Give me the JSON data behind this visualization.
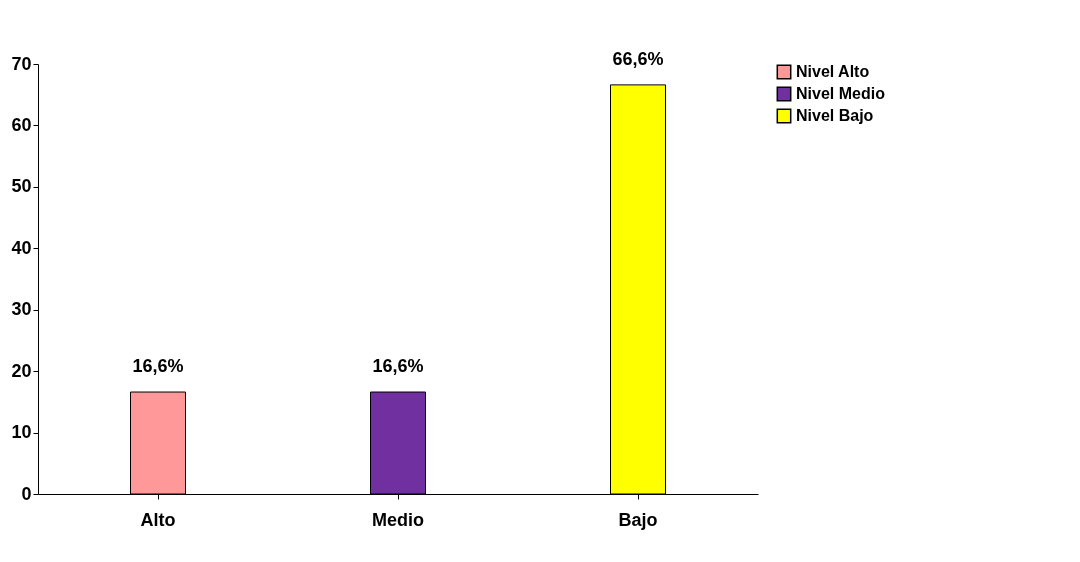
{
  "chart_data": {
    "type": "bar",
    "categories": [
      "Alto",
      "Medio",
      "Bajo"
    ],
    "series": [
      {
        "name": "Nivel Alto",
        "color": "#ff9999",
        "values": [
          16.6,
          null,
          null
        ],
        "value_labels": [
          "16,6%",
          null,
          null
        ]
      },
      {
        "name": "Nivel Medio",
        "color": "#7030a0",
        "values": [
          null,
          16.6,
          null
        ],
        "value_labels": [
          null,
          "16,6%",
          null
        ]
      },
      {
        "name": "Nivel Bajo",
        "color": "#ffff00",
        "values": [
          null,
          null,
          66.6
        ],
        "value_labels": [
          null,
          null,
          "66,6%"
        ]
      }
    ],
    "ylim": [
      0,
      70
    ],
    "yticks": [
      0,
      10,
      20,
      30,
      40,
      50,
      60,
      70
    ],
    "grid": false,
    "legend": "right"
  }
}
